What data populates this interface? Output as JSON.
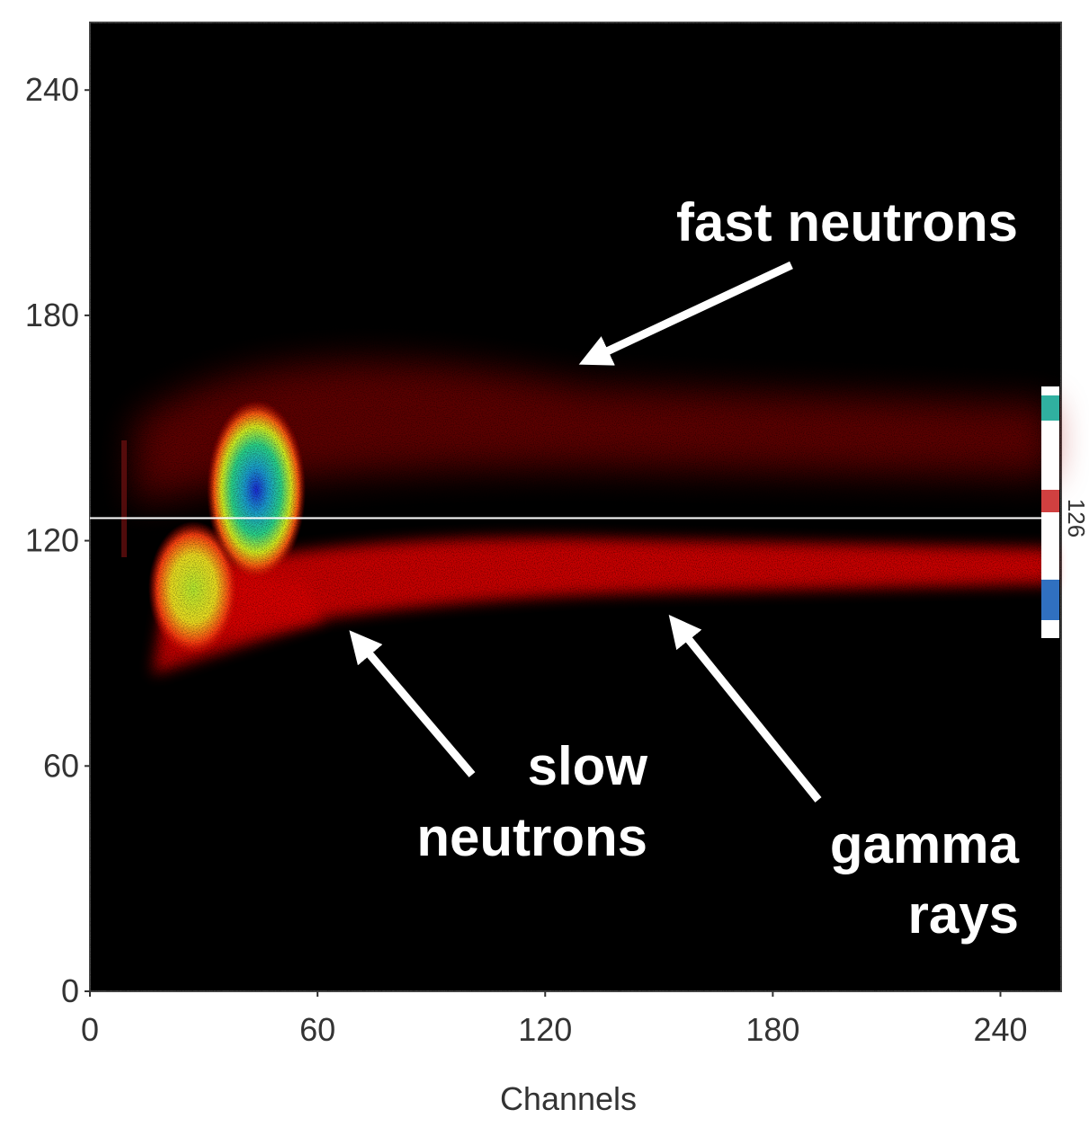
{
  "chart_data": {
    "type": "heatmap",
    "x_label": "Channels",
    "xlim": [
      0,
      256
    ],
    "ylim": [
      0,
      258
    ],
    "xticks": [
      0,
      60,
      120,
      180,
      240
    ],
    "yticks": [
      0,
      60,
      120,
      180,
      240
    ],
    "cursor": 126,
    "annotations": [
      {
        "lines": [
          "fast neutrons"
        ]
      },
      {
        "lines": [
          "slow",
          "neutrons"
        ]
      },
      {
        "lines": [
          "gamma",
          "rays"
        ]
      }
    ]
  }
}
